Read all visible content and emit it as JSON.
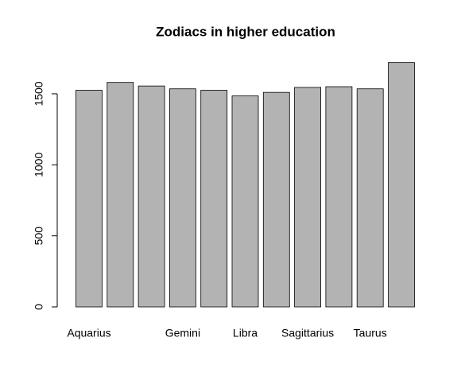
{
  "chart_data": {
    "type": "bar",
    "title": "Zodiacs in higher education",
    "categories": [
      "Aquarius",
      null,
      null,
      "Gemini",
      null,
      "Libra",
      null,
      "Sagittarius",
      null,
      "Taurus",
      null
    ],
    "values": [
      1525,
      1580,
      1555,
      1535,
      1525,
      1485,
      1510,
      1545,
      1550,
      1535,
      1720
    ],
    "color": "#b3b3b3",
    "ylim": [
      0,
      1750
    ],
    "yticks": [
      0,
      500,
      1000,
      1500
    ],
    "grid": false
  }
}
